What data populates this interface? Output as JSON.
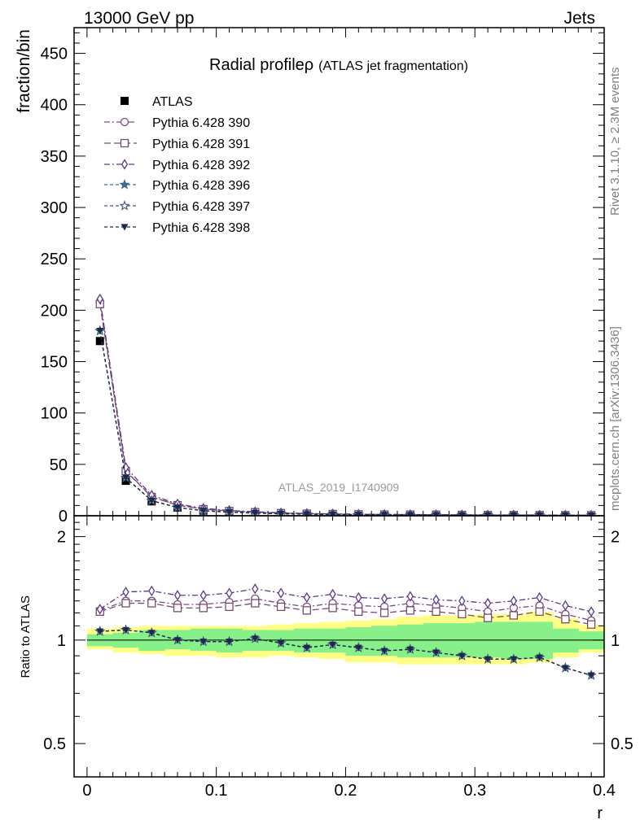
{
  "header": {
    "left": "13000 GeV pp",
    "right": "Jets"
  },
  "side_labels": {
    "rivet": "Rivet 3.1.10, ≥ 2.3M events",
    "mcplots": "mcplots.cern.ch [arXiv:1306.3436]"
  },
  "watermark": "ATLAS_2019_I1740909",
  "colors": {
    "atlas": "#000000",
    "p390": "#7a4a86",
    "p391": "#7a4a6e",
    "p392": "#5a3a8a",
    "p396": "#3f6a8a",
    "p397": "#3f5a7a",
    "p398": "#1a2a4a",
    "band_inner": "#88f088",
    "band_outer": "#ffff88"
  },
  "chart_data": [
    {
      "type": "line",
      "title_main": "Radial profile",
      "title_symbol": "ρ",
      "title_sub": "(ATLAS jet fragmentation)",
      "ylabel": "fraction/bin",
      "ylim": [
        0,
        475
      ],
      "yticks": [
        0,
        50,
        100,
        150,
        200,
        250,
        300,
        350,
        400,
        450
      ],
      "x": [
        0.01,
        0.03,
        0.05,
        0.07,
        0.09,
        0.11,
        0.13,
        0.15,
        0.17,
        0.19,
        0.21,
        0.23,
        0.25,
        0.27,
        0.29,
        0.31,
        0.33,
        0.35,
        0.37,
        0.39
      ],
      "legend_placement": "top-left",
      "series": [
        {
          "name": "ATLAS",
          "marker": "filled-square",
          "style": "none",
          "color_key": "atlas",
          "values": [
            170,
            34,
            14,
            8,
            5,
            3.5,
            2.6,
            2.0,
            1.6,
            1.3,
            1.1,
            0.95,
            0.85,
            0.75,
            0.65,
            0.6,
            0.55,
            0.5,
            0.45,
            0.42
          ]
        },
        {
          "name": "Pythia 6.428 390",
          "marker": "open-circle",
          "style": "dashdot",
          "color_key": "p390",
          "values": [
            208,
            44,
            18.5,
            10.5,
            6.5,
            4.7,
            3.5,
            2.6,
            2.05,
            1.7,
            1.4,
            1.2,
            1.12,
            0.96,
            0.82,
            0.74,
            0.69,
            0.64,
            0.55,
            0.48
          ]
        },
        {
          "name": "Pythia 6.428 391",
          "marker": "open-square",
          "style": "dashed-long",
          "color_key": "p391",
          "values": [
            206,
            43.5,
            18.2,
            10.3,
            6.4,
            4.6,
            3.45,
            2.55,
            2.0,
            1.68,
            1.38,
            1.18,
            1.1,
            0.95,
            0.8,
            0.72,
            0.67,
            0.63,
            0.54,
            0.47
          ]
        },
        {
          "name": "Pythia 6.428 392",
          "marker": "open-diamond",
          "style": "dashdot",
          "color_key": "p392",
          "values": [
            211,
            47,
            20,
            11.5,
            7.2,
            5.2,
            3.9,
            2.9,
            2.25,
            1.9,
            1.55,
            1.33,
            1.22,
            1.05,
            0.9,
            0.8,
            0.75,
            0.71,
            0.6,
            0.52
          ]
        },
        {
          "name": "Pythia 6.428 396",
          "marker": "filled-star",
          "style": "dashed",
          "color_key": "p396",
          "values": [
            180,
            37,
            14.7,
            8.0,
            4.9,
            3.45,
            2.65,
            1.95,
            1.52,
            1.26,
            1.04,
            0.88,
            0.8,
            0.69,
            0.59,
            0.53,
            0.49,
            0.45,
            0.37,
            0.33
          ]
        },
        {
          "name": "Pythia 6.428 397",
          "marker": "open-star",
          "style": "dashed",
          "color_key": "p397",
          "values": [
            180,
            37,
            14.7,
            8.0,
            4.9,
            3.45,
            2.65,
            1.95,
            1.52,
            1.26,
            1.04,
            0.88,
            0.8,
            0.69,
            0.59,
            0.53,
            0.49,
            0.45,
            0.37,
            0.33
          ]
        },
        {
          "name": "Pythia 6.428 398",
          "marker": "filled-triangle-down",
          "style": "dashed",
          "color_key": "p398",
          "values": [
            180,
            37,
            14.7,
            8.0,
            4.9,
            3.45,
            2.65,
            1.95,
            1.52,
            1.26,
            1.04,
            0.88,
            0.8,
            0.69,
            0.59,
            0.53,
            0.49,
            0.45,
            0.37,
            0.33
          ]
        }
      ]
    },
    {
      "type": "line",
      "ylabel": "Ratio to ATLAS",
      "xlabel": "r",
      "xlim": [
        -0.01,
        0.4
      ],
      "xticks": [
        0,
        0.1,
        0.2,
        0.3,
        0.4
      ],
      "xtick_labels": [
        "0",
        "0.1",
        "0.2",
        "0.3",
        "0.4"
      ],
      "ylim": [
        0.4,
        2.3
      ],
      "y_scale": "log",
      "yticks": [
        0.5,
        1,
        2
      ],
      "ytick_labels": [
        "0.5",
        "1",
        "2"
      ],
      "x": [
        0.01,
        0.03,
        0.05,
        0.07,
        0.09,
        0.11,
        0.13,
        0.15,
        0.17,
        0.19,
        0.21,
        0.23,
        0.25,
        0.27,
        0.29,
        0.31,
        0.33,
        0.35,
        0.37,
        0.39
      ],
      "band_inner": {
        "low": [
          0.96,
          0.95,
          0.93,
          0.94,
          0.93,
          0.92,
          0.93,
          0.93,
          0.92,
          0.92,
          0.9,
          0.9,
          0.89,
          0.89,
          0.89,
          0.89,
          0.88,
          0.88,
          0.92,
          0.94
        ],
        "high": [
          1.04,
          1.05,
          1.07,
          1.07,
          1.08,
          1.08,
          1.07,
          1.07,
          1.08,
          1.08,
          1.09,
          1.1,
          1.11,
          1.12,
          1.12,
          1.13,
          1.13,
          1.13,
          1.08,
          1.06
        ]
      },
      "band_outer": {
        "low": [
          0.94,
          0.92,
          0.91,
          0.9,
          0.9,
          0.89,
          0.89,
          0.9,
          0.89,
          0.88,
          0.86,
          0.86,
          0.85,
          0.85,
          0.85,
          0.85,
          0.85,
          0.86,
          0.89,
          0.92
        ],
        "high": [
          1.08,
          1.09,
          1.1,
          1.1,
          1.1,
          1.1,
          1.1,
          1.11,
          1.12,
          1.13,
          1.14,
          1.15,
          1.17,
          1.18,
          1.18,
          1.19,
          1.19,
          1.21,
          1.16,
          1.11
        ]
      },
      "series": [
        {
          "name": "Pythia 6.428 390",
          "color_key": "p390",
          "marker": "open-circle",
          "style": "dashdot",
          "values": [
            1.22,
            1.3,
            1.3,
            1.27,
            1.27,
            1.29,
            1.32,
            1.28,
            1.25,
            1.28,
            1.26,
            1.25,
            1.28,
            1.26,
            1.24,
            1.21,
            1.24,
            1.26,
            1.19,
            1.14
          ]
        },
        {
          "name": "Pythia 6.428 391",
          "color_key": "p391",
          "marker": "open-square",
          "style": "dashed-long",
          "values": [
            1.21,
            1.28,
            1.28,
            1.24,
            1.24,
            1.25,
            1.28,
            1.25,
            1.22,
            1.24,
            1.21,
            1.2,
            1.22,
            1.21,
            1.19,
            1.16,
            1.18,
            1.21,
            1.15,
            1.11
          ]
        },
        {
          "name": "Pythia 6.428 392",
          "color_key": "p392",
          "marker": "open-diamond",
          "style": "dashdot",
          "values": [
            1.23,
            1.38,
            1.39,
            1.35,
            1.35,
            1.37,
            1.41,
            1.37,
            1.33,
            1.36,
            1.33,
            1.32,
            1.34,
            1.31,
            1.3,
            1.28,
            1.3,
            1.33,
            1.26,
            1.21
          ]
        },
        {
          "name": "Pythia 6.428 396",
          "color_key": "p396",
          "marker": "filled-star",
          "style": "dashed",
          "values": [
            1.06,
            1.07,
            1.05,
            1.0,
            0.99,
            0.99,
            1.01,
            0.98,
            0.95,
            0.97,
            0.95,
            0.93,
            0.94,
            0.92,
            0.9,
            0.88,
            0.88,
            0.89,
            0.83,
            0.79
          ]
        },
        {
          "name": "Pythia 6.428 397",
          "color_key": "p397",
          "marker": "open-star",
          "style": "dashed",
          "values": [
            1.06,
            1.07,
            1.05,
            1.0,
            0.99,
            0.99,
            1.01,
            0.98,
            0.95,
            0.97,
            0.95,
            0.93,
            0.94,
            0.92,
            0.9,
            0.88,
            0.88,
            0.89,
            0.83,
            0.79
          ]
        },
        {
          "name": "Pythia 6.428 398",
          "color_key": "p398",
          "marker": "filled-triangle-down",
          "style": "dashed",
          "values": [
            1.06,
            1.07,
            1.05,
            1.0,
            0.99,
            0.99,
            1.01,
            0.98,
            0.95,
            0.97,
            0.95,
            0.93,
            0.94,
            0.92,
            0.9,
            0.88,
            0.88,
            0.89,
            0.83,
            0.79
          ]
        }
      ]
    }
  ]
}
